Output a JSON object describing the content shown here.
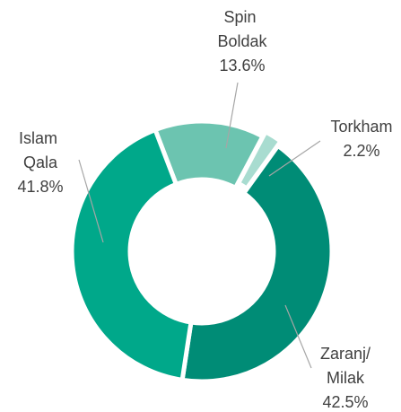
{
  "chart_data": {
    "type": "donut",
    "categories": [
      "Spin Boldak",
      "Torkham",
      "Zaranj/Milak",
      "Islam Qala"
    ],
    "values": [
      13.6,
      2.2,
      42.5,
      41.8
    ],
    "value_labels": [
      "13.6%",
      "2.2%",
      "42.5%",
      "41.8%"
    ],
    "colors": [
      "#6cc4b0",
      "#a8dcd0",
      "#008c76",
      "#00a88a"
    ]
  }
}
